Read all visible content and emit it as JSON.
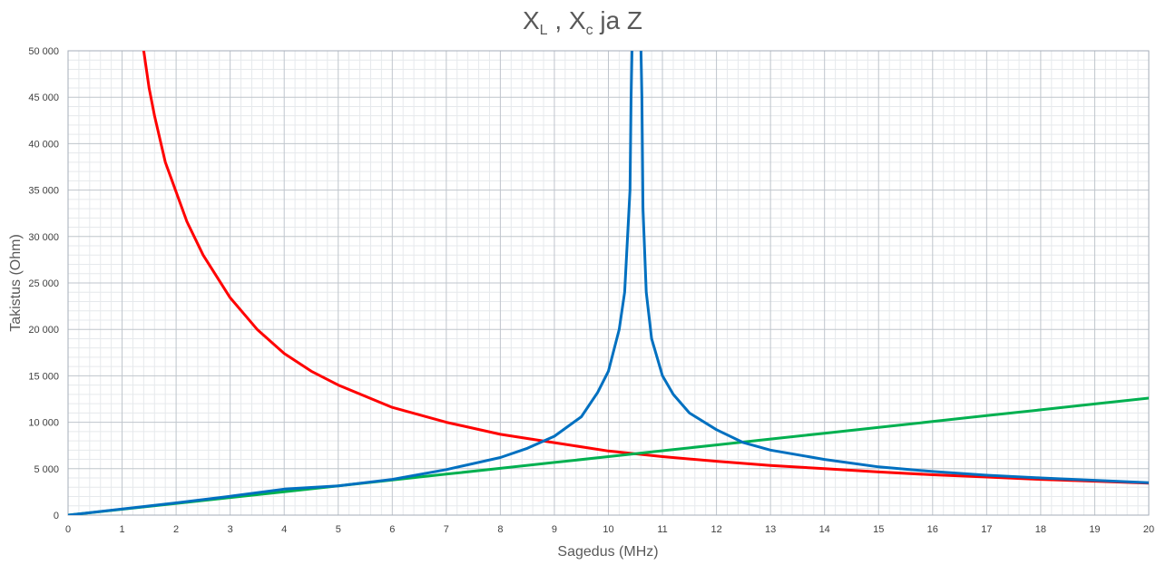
{
  "chart_data": {
    "type": "line",
    "title": {
      "xl_main": "X",
      "xl_sub": "L",
      "sep": " , ",
      "xc_main": "X",
      "xc_sub": "c",
      "rest": " ja Z"
    },
    "xlabel": "Sagedus (MHz)",
    "ylabel": "Takistus (Ohm)",
    "xlim": [
      0,
      20
    ],
    "ylim": [
      0,
      50000
    ],
    "x_ticks": [
      "0",
      "1",
      "2",
      "3",
      "4",
      "5",
      "6",
      "7",
      "8",
      "9",
      "10",
      "11",
      "12",
      "13",
      "14",
      "15",
      "16",
      "17",
      "18",
      "19",
      "20"
    ],
    "y_ticks": [
      "0",
      "5 000",
      "10 000",
      "15 000",
      "20 000",
      "25 000",
      "30 000",
      "35 000",
      "40 000",
      "45 000",
      "50 000"
    ],
    "grid": true,
    "legend": "none",
    "series": [
      {
        "color": "#ff0000",
        "points": [
          [
            1.4,
            50000
          ],
          [
            1.5,
            46000
          ],
          [
            1.6,
            43000
          ],
          [
            1.8,
            38000
          ],
          [
            2,
            34800
          ],
          [
            2.2,
            31600
          ],
          [
            2.5,
            28000
          ],
          [
            3,
            23400
          ],
          [
            3.5,
            20000
          ],
          [
            4,
            17400
          ],
          [
            4.5,
            15500
          ],
          [
            5,
            14000
          ],
          [
            6,
            11600
          ],
          [
            7,
            10000
          ],
          [
            8,
            8700
          ],
          [
            9,
            7800
          ],
          [
            10,
            6900
          ],
          [
            10.5,
            6600
          ],
          [
            11,
            6300
          ],
          [
            12,
            5800
          ],
          [
            13,
            5350
          ],
          [
            14,
            5000
          ],
          [
            15,
            4650
          ],
          [
            16,
            4350
          ],
          [
            17,
            4100
          ],
          [
            18,
            3850
          ],
          [
            19,
            3650
          ],
          [
            20,
            3450
          ]
        ]
      },
      {
        "color": "#00b050",
        "points": [
          [
            0,
            0
          ],
          [
            1,
            630
          ],
          [
            2,
            1260
          ],
          [
            3,
            1890
          ],
          [
            4,
            2520
          ],
          [
            5,
            3150
          ],
          [
            6,
            3780
          ],
          [
            7,
            4410
          ],
          [
            8,
            5040
          ],
          [
            9,
            5670
          ],
          [
            10,
            6300
          ],
          [
            11,
            6930
          ],
          [
            12,
            7560
          ],
          [
            13,
            8190
          ],
          [
            14,
            8820
          ],
          [
            15,
            9450
          ],
          [
            16,
            10080
          ],
          [
            17,
            10710
          ],
          [
            18,
            11340
          ],
          [
            19,
            11970
          ],
          [
            20,
            12600
          ]
        ]
      },
      {
        "color": "#0070c0",
        "points": [
          [
            0,
            0
          ],
          [
            1,
            650
          ],
          [
            2,
            1320
          ],
          [
            3,
            2030
          ],
          [
            4,
            2800
          ],
          [
            5,
            3150
          ],
          [
            6,
            3850
          ],
          [
            7,
            4900
          ],
          [
            8,
            6200
          ],
          [
            8.5,
            7200
          ],
          [
            9,
            8500
          ],
          [
            9.5,
            10600
          ],
          [
            9.8,
            13200
          ],
          [
            10,
            15500
          ],
          [
            10.2,
            20000
          ],
          [
            10.3,
            24000
          ],
          [
            10.4,
            35000
          ],
          [
            10.42,
            45000
          ],
          [
            10.44,
            51000
          ],
          [
            10.6,
            51000
          ],
          [
            10.62,
            45000
          ],
          [
            10.64,
            33000
          ],
          [
            10.7,
            24000
          ],
          [
            10.8,
            19000
          ],
          [
            11,
            15000
          ],
          [
            11.2,
            13000
          ],
          [
            11.5,
            11000
          ],
          [
            12,
            9200
          ],
          [
            12.5,
            7800
          ],
          [
            13,
            7000
          ],
          [
            14,
            6000
          ],
          [
            15,
            5200
          ],
          [
            16,
            4700
          ],
          [
            17,
            4300
          ],
          [
            18,
            4000
          ],
          [
            19,
            3750
          ],
          [
            20,
            3500
          ]
        ]
      }
    ]
  }
}
